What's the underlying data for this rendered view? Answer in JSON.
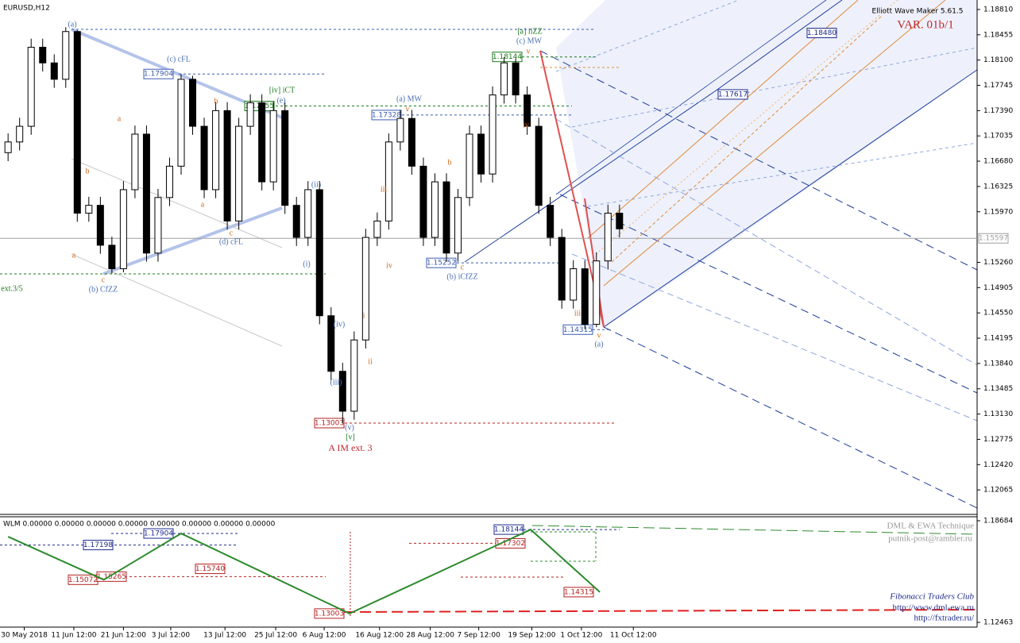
{
  "chart_data": [
    {
      "type": "candlestick",
      "title": "EURUSD,H12",
      "indicator_name": "Elliott Wave Maker 5.61.5",
      "watermark": "VAR. 01b/1",
      "open": [
        1.168,
        1.1695,
        1.1717,
        1.1828,
        1.1806,
        1.1783,
        1.185,
        1.1595,
        1.1606,
        1.155,
        1.1517,
        1.1628,
        1.1706,
        1.1539,
        1.1617,
        1.1661,
        1.1783,
        1.1717,
        1.1628,
        1.1739,
        1.1584,
        1.1717,
        1.175,
        1.1639,
        1.1739,
        1.1606,
        1.1561,
        1.1628,
        1.1451,
        1.1373,
        1.1317,
        1.1417,
        1.1561,
        1.1584,
        1.1695,
        1.1728,
        1.1661,
        1.1561,
        1.1639,
        1.1539,
        1.1617,
        1.1706,
        1.165,
        1.1761,
        1.1806,
        1.1761,
        1.1717,
        1.1606,
        1.1561,
        1.1473,
        1.1517,
        1.1439,
        1.1528,
        1.1595
      ],
      "high": [
        1.1707,
        1.1729,
        1.184,
        1.184,
        1.1818,
        1.1856,
        1.1852,
        1.1618,
        1.1618,
        1.1562,
        1.164,
        1.1718,
        1.1718,
        1.1629,
        1.1673,
        1.179,
        1.1788,
        1.1729,
        1.1751,
        1.1751,
        1.1729,
        1.1762,
        1.1762,
        1.1751,
        1.1751,
        1.1618,
        1.164,
        1.164,
        1.1463,
        1.1385,
        1.1429,
        1.1573,
        1.1596,
        1.1707,
        1.174,
        1.174,
        1.1673,
        1.1651,
        1.1651,
        1.1629,
        1.1718,
        1.1718,
        1.1773,
        1.1814,
        1.1812,
        1.1773,
        1.1729,
        1.1618,
        1.1573,
        1.1529,
        1.1529,
        1.154,
        1.1607,
        1.1607
      ],
      "low": [
        1.1668,
        1.1683,
        1.1705,
        1.1794,
        1.1771,
        1.1771,
        1.1583,
        1.1583,
        1.1538,
        1.151,
        1.1512,
        1.1616,
        1.1527,
        1.1527,
        1.1605,
        1.1649,
        1.1705,
        1.1616,
        1.1616,
        1.1572,
        1.1572,
        1.1705,
        1.1627,
        1.1627,
        1.1594,
        1.1549,
        1.1549,
        1.1439,
        1.1361,
        1.13,
        1.1305,
        1.1405,
        1.1549,
        1.1572,
        1.1683,
        1.1649,
        1.1549,
        1.1549,
        1.1527,
        1.1527,
        1.1605,
        1.1638,
        1.1638,
        1.1749,
        1.1749,
        1.1705,
        1.1594,
        1.1549,
        1.1461,
        1.1461,
        1.1432,
        1.1435,
        1.1516,
        1.1561
      ],
      "close": [
        1.1695,
        1.1717,
        1.1828,
        1.1806,
        1.1783,
        1.185,
        1.1595,
        1.1606,
        1.155,
        1.1517,
        1.1628,
        1.1706,
        1.1539,
        1.1617,
        1.1661,
        1.1783,
        1.1717,
        1.1628,
        1.1739,
        1.1584,
        1.1717,
        1.175,
        1.1639,
        1.1739,
        1.1606,
        1.1561,
        1.1628,
        1.1451,
        1.1373,
        1.1317,
        1.1417,
        1.1561,
        1.1584,
        1.1695,
        1.1728,
        1.1661,
        1.1561,
        1.1639,
        1.1539,
        1.1617,
        1.1706,
        1.165,
        1.1761,
        1.1806,
        1.1761,
        1.1717,
        1.1606,
        1.1561,
        1.1473,
        1.1517,
        1.1439,
        1.1528,
        1.1595,
        1.1573
      ],
      "colors": {
        "up": "#ffffff",
        "down": "#000000",
        "outline": "#000000"
      },
      "xlim": [
        -0.7,
        84
      ],
      "xticks": [
        {
          "value": 1.4,
          "label": "30 May 2018"
        },
        {
          "value": 5.7,
          "label": "11 Jun 12:00"
        },
        {
          "value": 10,
          "label": "21 Jun 12:00"
        },
        {
          "value": 14.1,
          "label": "3 Jul 12:00"
        },
        {
          "value": 18.8,
          "label": "13 Jul 12:00"
        },
        {
          "value": 23.2,
          "label": "25 Jul 12:00"
        },
        {
          "value": 27.4,
          "label": "6 Aug 12:00"
        },
        {
          "value": 32.2,
          "label": "16 Aug 12:00"
        },
        {
          "value": 36.6,
          "label": "28 Aug 12:00"
        },
        {
          "value": 40.8,
          "label": "7 Sep 12:00"
        },
        {
          "value": 45.4,
          "label": "19 Sep 12:00"
        },
        {
          "value": 49.7,
          "label": "1 Oct 12:00"
        },
        {
          "value": 54.2,
          "label": "11 Oct 12:00"
        }
      ],
      "ylim": [
        1.11721,
        1.18943
      ],
      "yticks": [
        {
          "value": 1.1881,
          "label": "1.18810"
        },
        {
          "value": 1.18455,
          "label": "1.18455"
        },
        {
          "value": 1.181,
          "label": "1.18100"
        },
        {
          "value": 1.17745,
          "label": "1.17745"
        },
        {
          "value": 1.1739,
          "label": "1.17390"
        },
        {
          "value": 1.17035,
          "label": "1.17035"
        },
        {
          "value": 1.1668,
          "label": "1.16680"
        },
        {
          "value": 1.16325,
          "label": "1.16325"
        },
        {
          "value": 1.1597,
          "label": "1.15970"
        },
        {
          "value": 1.1526,
          "label": "1.15260"
        },
        {
          "value": 1.14905,
          "label": "1.14905"
        },
        {
          "value": 1.1455,
          "label": "1.14550"
        },
        {
          "value": 1.14195,
          "label": "1.14195"
        },
        {
          "value": 1.1384,
          "label": "1.13840"
        },
        {
          "value": 1.13485,
          "label": "1.13485"
        },
        {
          "value": 1.1313,
          "label": "1.13130"
        },
        {
          "value": 1.12775,
          "label": "1.12775"
        },
        {
          "value": 1.1242,
          "label": "1.12420"
        },
        {
          "value": 1.12065,
          "label": "1.12065"
        }
      ],
      "levels": [
        {
          "value": 1.17904,
          "label": "1.17904",
          "color": "#3a5bb0"
        },
        {
          "value": 1.17455,
          "label": "1.17455",
          "color": "#1a7a1a"
        },
        {
          "value": 1.17328,
          "label": "1.17328",
          "color": "#3a5bb0"
        },
        {
          "value": 1.18144,
          "label": "1.18144",
          "color": "#1a7a1a"
        },
        {
          "value": 1.15252,
          "label": "1.15252",
          "color": "#3a5bb0"
        },
        {
          "value": 1.14315,
          "label": "1.14315",
          "color": "#3a5bb0"
        },
        {
          "value": 1.13003,
          "label": "1.13003",
          "color": "#b22222"
        },
        {
          "value": 1.1848,
          "label": "1.18480",
          "color": "#1c2a8c"
        },
        {
          "value": 1.17617,
          "label": "1.17617",
          "color": "#1c2a8c"
        },
        {
          "value": 1.15597,
          "label": "1.15597",
          "color": "#a0a0a0"
        }
      ],
      "annotations": [
        {
          "text": "(a)",
          "color": "#4a6fb5"
        },
        {
          "text": "(c) cFL",
          "color": "#4a6fb5"
        },
        {
          "text": "[iv] iCT",
          "color": "#1a7a1a"
        },
        {
          "text": "(e)",
          "color": "#4a6fb5"
        },
        {
          "text": "[a] iiZZ",
          "color": "#1a7a1a"
        },
        {
          "text": "(c) MW",
          "color": "#4a6fb5"
        },
        {
          "text": "(a) MW",
          "color": "#4a6fb5"
        },
        {
          "text": "(ii)",
          "color": "#4a6fb5"
        },
        {
          "text": "(i)",
          "color": "#4a6fb5"
        },
        {
          "text": "(iv)",
          "color": "#4a6fb5"
        },
        {
          "text": "(iii)",
          "color": "#4a6fb5"
        },
        {
          "text": "(v)",
          "color": "#4a6fb5"
        },
        {
          "text": "[v]",
          "color": "#1a7a1a"
        },
        {
          "text": "A IM ext. 3",
          "color": "#c0262d"
        },
        {
          "text": "(b) CfZZ",
          "color": "#4a6fb5"
        },
        {
          "text": "(d) cFL",
          "color": "#4a6fb5"
        },
        {
          "text": "(b) iCfZZ",
          "color": "#4a6fb5"
        },
        {
          "text": "(a)",
          "color": "#4a6fb5"
        },
        {
          "text": "ext.3/5",
          "color": "#1a7a1a"
        },
        {
          "text": "iii",
          "color": "#d2691e"
        },
        {
          "text": "iv",
          "color": "#d2691e"
        },
        {
          "text": "v",
          "color": "#d2691e"
        },
        {
          "text": "i",
          "color": "#d2691e"
        },
        {
          "text": "ii",
          "color": "#d2691e"
        },
        {
          "text": "b",
          "color": "#d2691e"
        },
        {
          "text": "c",
          "color": "#d2691e"
        },
        {
          "text": "iv",
          "color": "#d2691e"
        },
        {
          "text": "v",
          "color": "#d2691e"
        },
        {
          "text": "iii",
          "color": "#d2691e"
        },
        {
          "text": "v",
          "color": "#d2691e"
        },
        {
          "text": "a",
          "color": "#d2691e"
        },
        {
          "text": "b",
          "color": "#d2691e"
        },
        {
          "text": "c",
          "color": "#d2691e"
        },
        {
          "text": "a",
          "color": "#d2691e"
        },
        {
          "text": "b",
          "color": "#d2691e"
        },
        {
          "text": "c",
          "color": "#d2691e"
        },
        {
          "text": "a",
          "color": "#d2691e"
        }
      ]
    },
    {
      "type": "line",
      "title": "WLM 0.00000 0.00000 0.00000 0.00000 0.00000 0.00000 0.00000 0.00000",
      "x": [
        0,
        8.3,
        15,
        29.6,
        45.3,
        51.3
      ],
      "series": [
        {
          "values": [
            1.1771,
            1.15072,
            1.17904,
            1.13003,
            1.18144,
            1.14315
          ],
          "color": "#2e8b2e"
        }
      ],
      "xlim": [
        -0.7,
        84
      ],
      "ylim": [
        1.12171,
        1.18878
      ],
      "yticks": [
        {
          "value": 1.18684,
          "label": "1.18684"
        },
        {
          "value": 1.12463,
          "label": "1.12463"
        }
      ],
      "levels": [
        {
          "value": 1.17198,
          "label": "1.17198",
          "color": "#1c2a8c"
        },
        {
          "value": 1.17904,
          "label": "1.17904",
          "color": "#1c2a8c"
        },
        {
          "value": 1.15072,
          "label": "1.15072",
          "color": "#b22222"
        },
        {
          "value": 1.15265,
          "label": "1.15265",
          "color": "#b22222"
        },
        {
          "value": 1.1574,
          "label": "1.15740",
          "color": "#b22222"
        },
        {
          "value": 1.13003,
          "label": "1.13003",
          "color": "#b22222"
        },
        {
          "value": 1.18144,
          "label": "1.18144",
          "color": "#1c2a8c"
        },
        {
          "value": 1.17302,
          "label": "1.17302",
          "color": "#b22222"
        },
        {
          "value": 1.14315,
          "label": "1.14315",
          "color": "#b22222"
        }
      ],
      "notes": [
        "DML & EWA Technique",
        "putnik-post@rambler.ru",
        "Fibonacci Traders Club",
        "http://www.dml-ewa.ru",
        "http://fxtrader.ru/"
      ]
    }
  ]
}
